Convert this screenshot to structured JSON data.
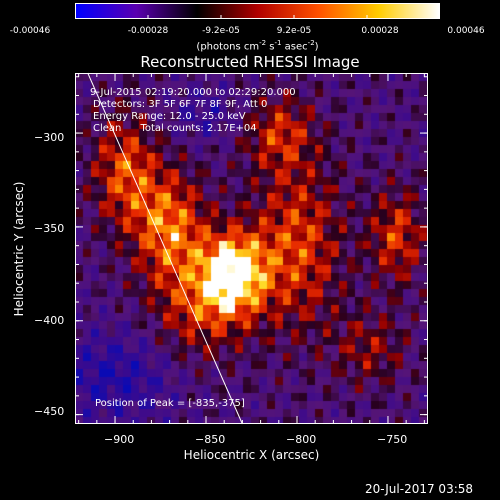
{
  "colorbar": {
    "ticks": [
      "-0.00046",
      "-0.00028",
      "-9.2e-05",
      "9.2e-05",
      "0.00028",
      "0.00046"
    ],
    "units_text": "(photons cm",
    "units_sup1": "-2",
    "units_mid": " s",
    "units_sup2": "-1",
    "units_end": " asec",
    "units_sup3": "-2",
    "units_close": ")",
    "colors": [
      "#0000ff",
      "#5a00b0",
      "#000000",
      "#b00000",
      "#ff5000",
      "#ffcc00",
      "#ffffff"
    ]
  },
  "chart_data": {
    "type": "heatmap",
    "title": "Reconstructed RHESSI Image",
    "xlabel": "Heliocentric X (arcsec)",
    "ylabel": "Heliocentric Y (arcsec)",
    "xlim": [
      -922,
      -728
    ],
    "ylim": [
      -455,
      -268
    ],
    "x_ticks": [
      -900,
      -850,
      -800,
      -750
    ],
    "x_tick_labels": [
      "−900",
      "−850",
      "−800",
      "−750"
    ],
    "y_ticks": [
      -300,
      -350,
      -400,
      -450
    ],
    "y_tick_labels": [
      "−300",
      "−350",
      "−400",
      "−450"
    ],
    "peak": [
      -835,
      -375
    ],
    "limb": [
      [
        -915,
        -268
      ],
      [
        -830,
        -455
      ]
    ],
    "annotations": {
      "time": "9-Jul-2015 02:19:20.000 to 02:29:20.000",
      "detectors": "Detectors: 3F 5F 6F 7F 8F 9F, Att 0",
      "energy": "Energy Range: 12.0 - 25.0 keV",
      "clean": "Clean      Total counts: 2.17E+04",
      "peak_text": "Position of Peak = [-835,-375]"
    }
  },
  "footer": {
    "timestamp": "20-Jul-2017 03:58"
  }
}
